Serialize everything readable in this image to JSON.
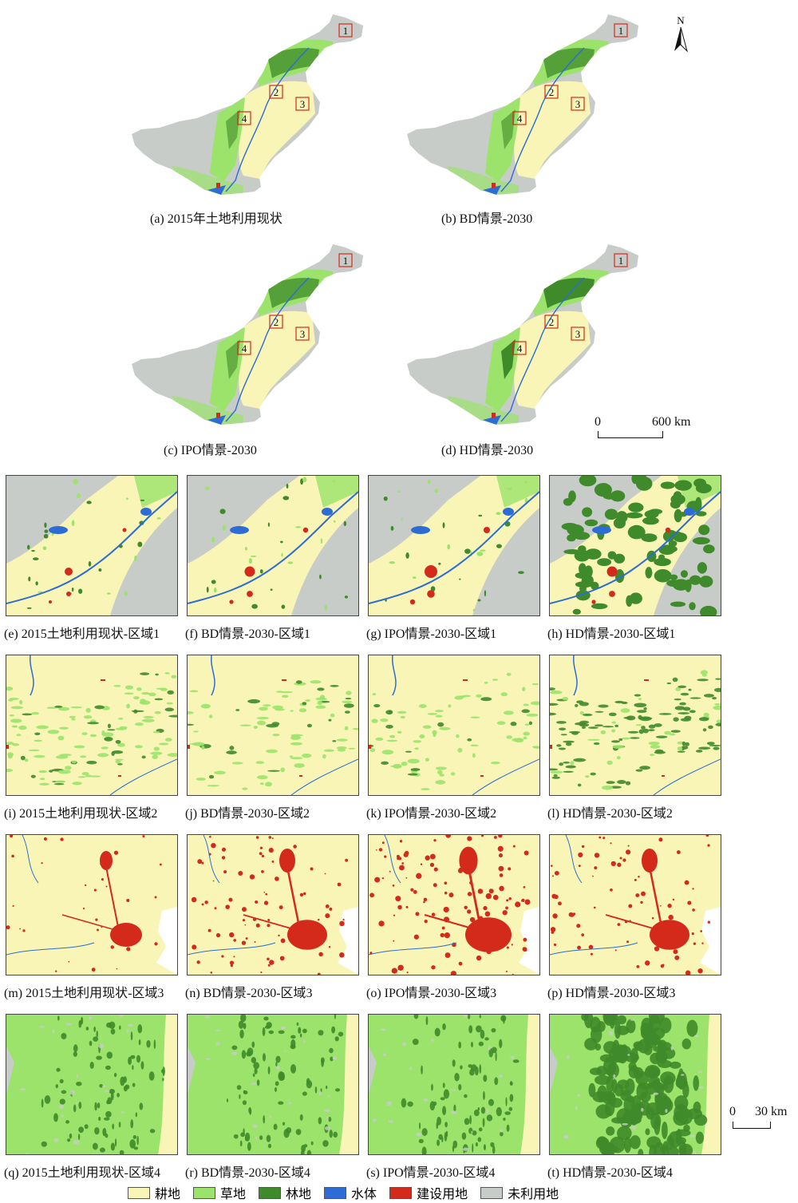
{
  "colors": {
    "cultivated": "#f8f5b6",
    "grassland": "#9be36a",
    "forest": "#3f8a2a",
    "water": "#2c6cd4",
    "built": "#d42a1c",
    "unused": "#c8ccc9"
  },
  "north_arrow": {
    "label": "N"
  },
  "overview_maps": [
    {
      "caption": "(a) 2015年土地利用现状",
      "forest_level": 1
    },
    {
      "caption": "(b) BD情景-2030",
      "forest_level": 1
    },
    {
      "caption": "(c) IPO情景-2030",
      "forest_level": 1
    },
    {
      "caption": "(d) HD情景-2030",
      "forest_level": 2
    }
  ],
  "region_labels": [
    "1",
    "2",
    "3",
    "4"
  ],
  "scalebar_large": {
    "zero": "0",
    "label": "600 km"
  },
  "scalebar_small": {
    "zero": "0",
    "label": "30 km"
  },
  "panels": [
    {
      "caption": "(e) 2015土地利用现状-区域1",
      "region": 1,
      "variant": "base"
    },
    {
      "caption": "(f) BD情景-2030-区域1",
      "region": 1,
      "variant": "bd"
    },
    {
      "caption": "(g) IPO情景-2030-区域1",
      "region": 1,
      "variant": "ipo"
    },
    {
      "caption": "(h) HD情景-2030-区域1",
      "region": 1,
      "variant": "hd"
    },
    {
      "caption": "(i) 2015土地利用现状-区域2",
      "region": 2,
      "variant": "base"
    },
    {
      "caption": "(j) BD情景-2030-区域2",
      "region": 2,
      "variant": "bd"
    },
    {
      "caption": "(k) IPO情景-2030-区域2",
      "region": 2,
      "variant": "ipo"
    },
    {
      "caption": "(l) HD情景-2030-区域2",
      "region": 2,
      "variant": "hd"
    },
    {
      "caption": "(m) 2015土地利用现状-区域3",
      "region": 3,
      "variant": "base"
    },
    {
      "caption": "(n) BD情景-2030-区域3",
      "region": 3,
      "variant": "bd"
    },
    {
      "caption": "(o) IPO情景-2030-区域3",
      "region": 3,
      "variant": "ipo"
    },
    {
      "caption": "(p) HD情景-2030-区域3",
      "region": 3,
      "variant": "hd"
    },
    {
      "caption": "(q) 2015土地利用现状-区域4",
      "region": 4,
      "variant": "base"
    },
    {
      "caption": "(r) BD情景-2030-区域4",
      "region": 4,
      "variant": "bd"
    },
    {
      "caption": "(s) IPO情景-2030-区域4",
      "region": 4,
      "variant": "ipo"
    },
    {
      "caption": "(t) HD情景-2030-区域4",
      "region": 4,
      "variant": "hd"
    }
  ],
  "legend": [
    {
      "label": "耕地",
      "color": "#f8f5b6"
    },
    {
      "label": "草地",
      "color": "#9be36a"
    },
    {
      "label": "林地",
      "color": "#3f8a2a"
    },
    {
      "label": "水体",
      "color": "#2c6cd4"
    },
    {
      "label": "建设用地",
      "color": "#d42a1c"
    },
    {
      "label": "未利用地",
      "color": "#c8ccc9"
    }
  ]
}
